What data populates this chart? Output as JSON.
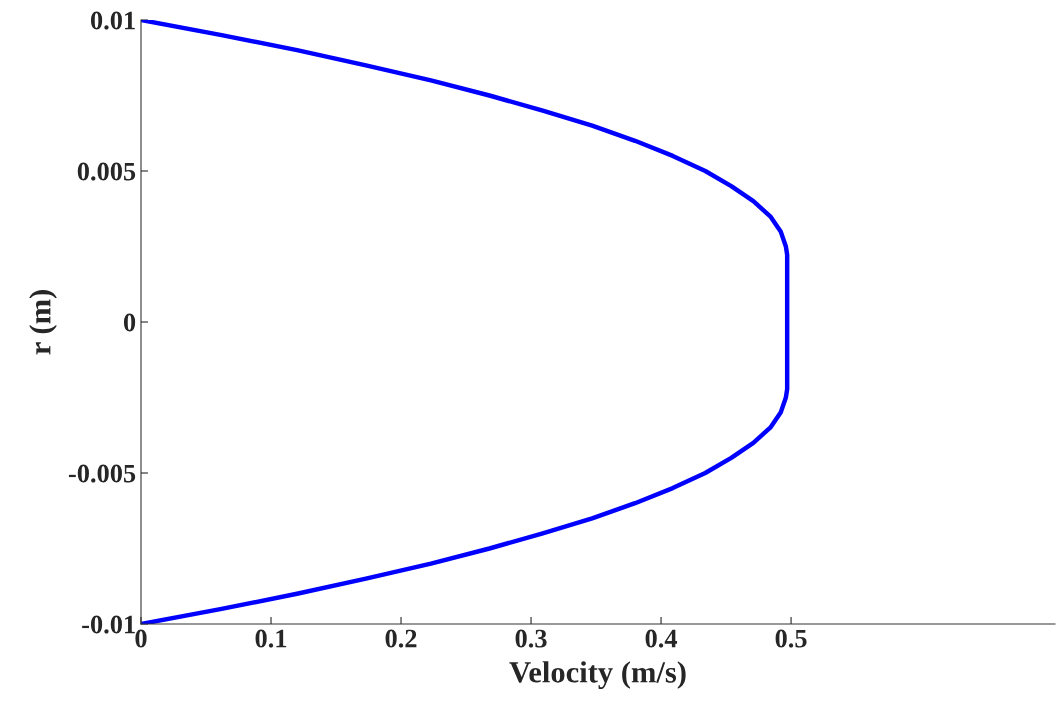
{
  "chart_data": {
    "type": "line",
    "xlabel": "Velocity (m/s)",
    "ylabel": "r (m)",
    "xlim": [
      0,
      0.703
    ],
    "ylim": [
      -0.01,
      0.01
    ],
    "xticks": [
      0,
      0.1,
      0.2,
      0.3,
      0.4,
      0.5
    ],
    "yticks": [
      {
        "value": -0.01,
        "label": "-0.01"
      },
      {
        "value": -0.005,
        "label": "-0.005"
      },
      0,
      {
        "value": 0.005,
        "label": "0.005"
      },
      {
        "value": 0.01,
        "label": "0.01"
      }
    ],
    "grid": false,
    "legend": false,
    "marker": "none",
    "line_style": "solid",
    "series": [
      {
        "color": "#0000ff",
        "x": [
          0,
          0.062,
          0.12,
          0.173,
          0.223,
          0.268,
          0.309,
          0.347,
          0.38,
          0.409,
          0.434,
          0.454,
          0.471,
          0.484,
          0.492,
          0.496,
          0.497,
          0.497,
          0.496,
          0.492,
          0.484,
          0.471,
          0.454,
          0.434,
          0.409,
          0.38,
          0.347,
          0.309,
          0.268,
          0.223,
          0.173,
          0.12,
          0.062,
          0
        ],
        "values": [
          -0.01,
          -0.0095,
          -0.009,
          -0.0085,
          -0.008,
          -0.0075,
          -0.007,
          -0.0065,
          -0.006,
          -0.0055,
          -0.005,
          -0.0045,
          -0.004,
          -0.0035,
          -0.003,
          -0.0025,
          -0.00222,
          0.00222,
          0.0025,
          0.003,
          0.0035,
          0.004,
          0.0045,
          0.005,
          0.0055,
          0.006,
          0.0065,
          0.007,
          0.0075,
          0.008,
          0.0085,
          0.009,
          0.0095,
          0.01
        ]
      }
    ]
  }
}
